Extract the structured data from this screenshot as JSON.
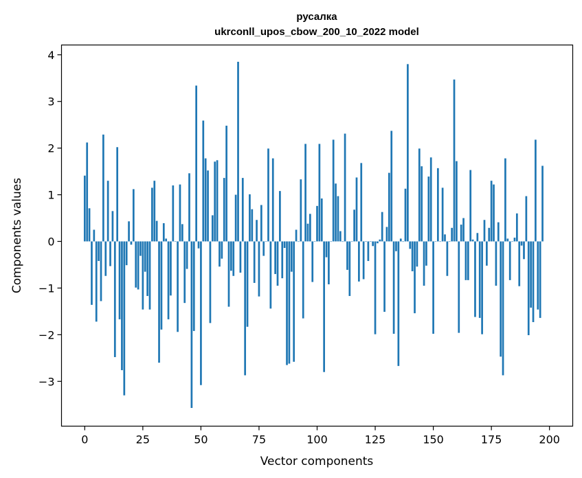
{
  "chart_data": {
    "type": "bar",
    "title": "русалка",
    "subtitle": "ukrconll_upos_cbow_200_10_2022 model",
    "xlabel": "Vector components",
    "ylabel": "Components values",
    "xlim": [
      -10,
      210
    ],
    "ylim": [
      -3.96,
      4.21
    ],
    "xticks": [
      0,
      25,
      50,
      75,
      100,
      125,
      150,
      175,
      200
    ],
    "yticks": [
      -3,
      -2,
      -1,
      0,
      1,
      2,
      3,
      4
    ],
    "xtick_labels": [
      "0",
      "25",
      "50",
      "75",
      "100",
      "125",
      "150",
      "175",
      "200"
    ],
    "ytick_labels": [
      "−3",
      "−2",
      "−1",
      "0",
      "1",
      "2",
      "3",
      "4"
    ],
    "grid": false,
    "legend": false,
    "bar_color": "#1f77b4",
    "values": [
      1.41,
      2.12,
      0.71,
      -1.36,
      0.25,
      -1.72,
      -0.42,
      -1.28,
      2.29,
      -0.74,
      1.3,
      -0.53,
      0.65,
      -2.48,
      2.02,
      -1.67,
      -2.76,
      -3.3,
      -0.51,
      0.43,
      -0.07,
      1.12,
      -0.99,
      -1.03,
      -0.31,
      -1.46,
      -0.65,
      -1.17,
      -1.46,
      1.15,
      1.3,
      0.44,
      -2.6,
      -1.89,
      0.39,
      0.06,
      -1.67,
      -1.16,
      1.2,
      0.0,
      -1.94,
      1.22,
      0.37,
      -1.32,
      -0.59,
      1.46,
      -3.57,
      -1.92,
      3.34,
      -0.15,
      -3.08,
      2.59,
      1.78,
      1.52,
      -1.75,
      0.56,
      1.71,
      1.74,
      -0.54,
      -0.37,
      1.36,
      2.48,
      -1.4,
      -0.63,
      -0.74,
      1.0,
      3.85,
      -0.67,
      1.36,
      -2.87,
      -1.83,
      1.01,
      0.69,
      -0.89,
      0.46,
      -1.18,
      0.78,
      -0.31,
      0.0,
      1.99,
      -1.44,
      1.78,
      -0.7,
      -0.95,
      1.08,
      -0.79,
      -0.14,
      -2.65,
      -2.62,
      -0.65,
      -2.58,
      0.25,
      0.0,
      1.33,
      -1.65,
      2.09,
      0.38,
      0.59,
      -0.87,
      0.0,
      0.76,
      2.09,
      0.92,
      -2.8,
      -0.34,
      -0.92,
      0.0,
      2.18,
      1.24,
      0.97,
      0.22,
      0.0,
      2.31,
      -0.61,
      -1.17,
      0.0,
      0.68,
      1.37,
      -0.86,
      1.68,
      -0.81,
      0.0,
      -0.42,
      0.0,
      -0.1,
      -1.99,
      -0.04,
      0.04,
      0.63,
      -1.51,
      0.31,
      1.47,
      2.37,
      -1.98,
      -0.21,
      -2.67,
      0.06,
      0.0,
      1.13,
      3.8,
      -0.16,
      -0.64,
      -1.54,
      -0.54,
      1.99,
      1.61,
      -0.95,
      -0.52,
      1.39,
      1.8,
      -1.98,
      0.0,
      1.57,
      0.0,
      1.15,
      0.15,
      -0.74,
      0.0,
      0.29,
      3.47,
      1.72,
      -1.96,
      0.36,
      0.5,
      -0.83,
      -0.83,
      1.53,
      0.04,
      -1.62,
      0.18,
      -1.64,
      -1.99,
      0.46,
      -0.52,
      0.29,
      1.3,
      1.22,
      -0.95,
      0.41,
      -2.47,
      -2.87,
      1.78,
      0.06,
      -0.83,
      0.0,
      0.08,
      0.6,
      -0.96,
      -0.09,
      -0.38,
      0.97,
      -2.01,
      -1.42,
      -1.73,
      2.18,
      -1.46,
      -1.64,
      1.62
    ]
  }
}
